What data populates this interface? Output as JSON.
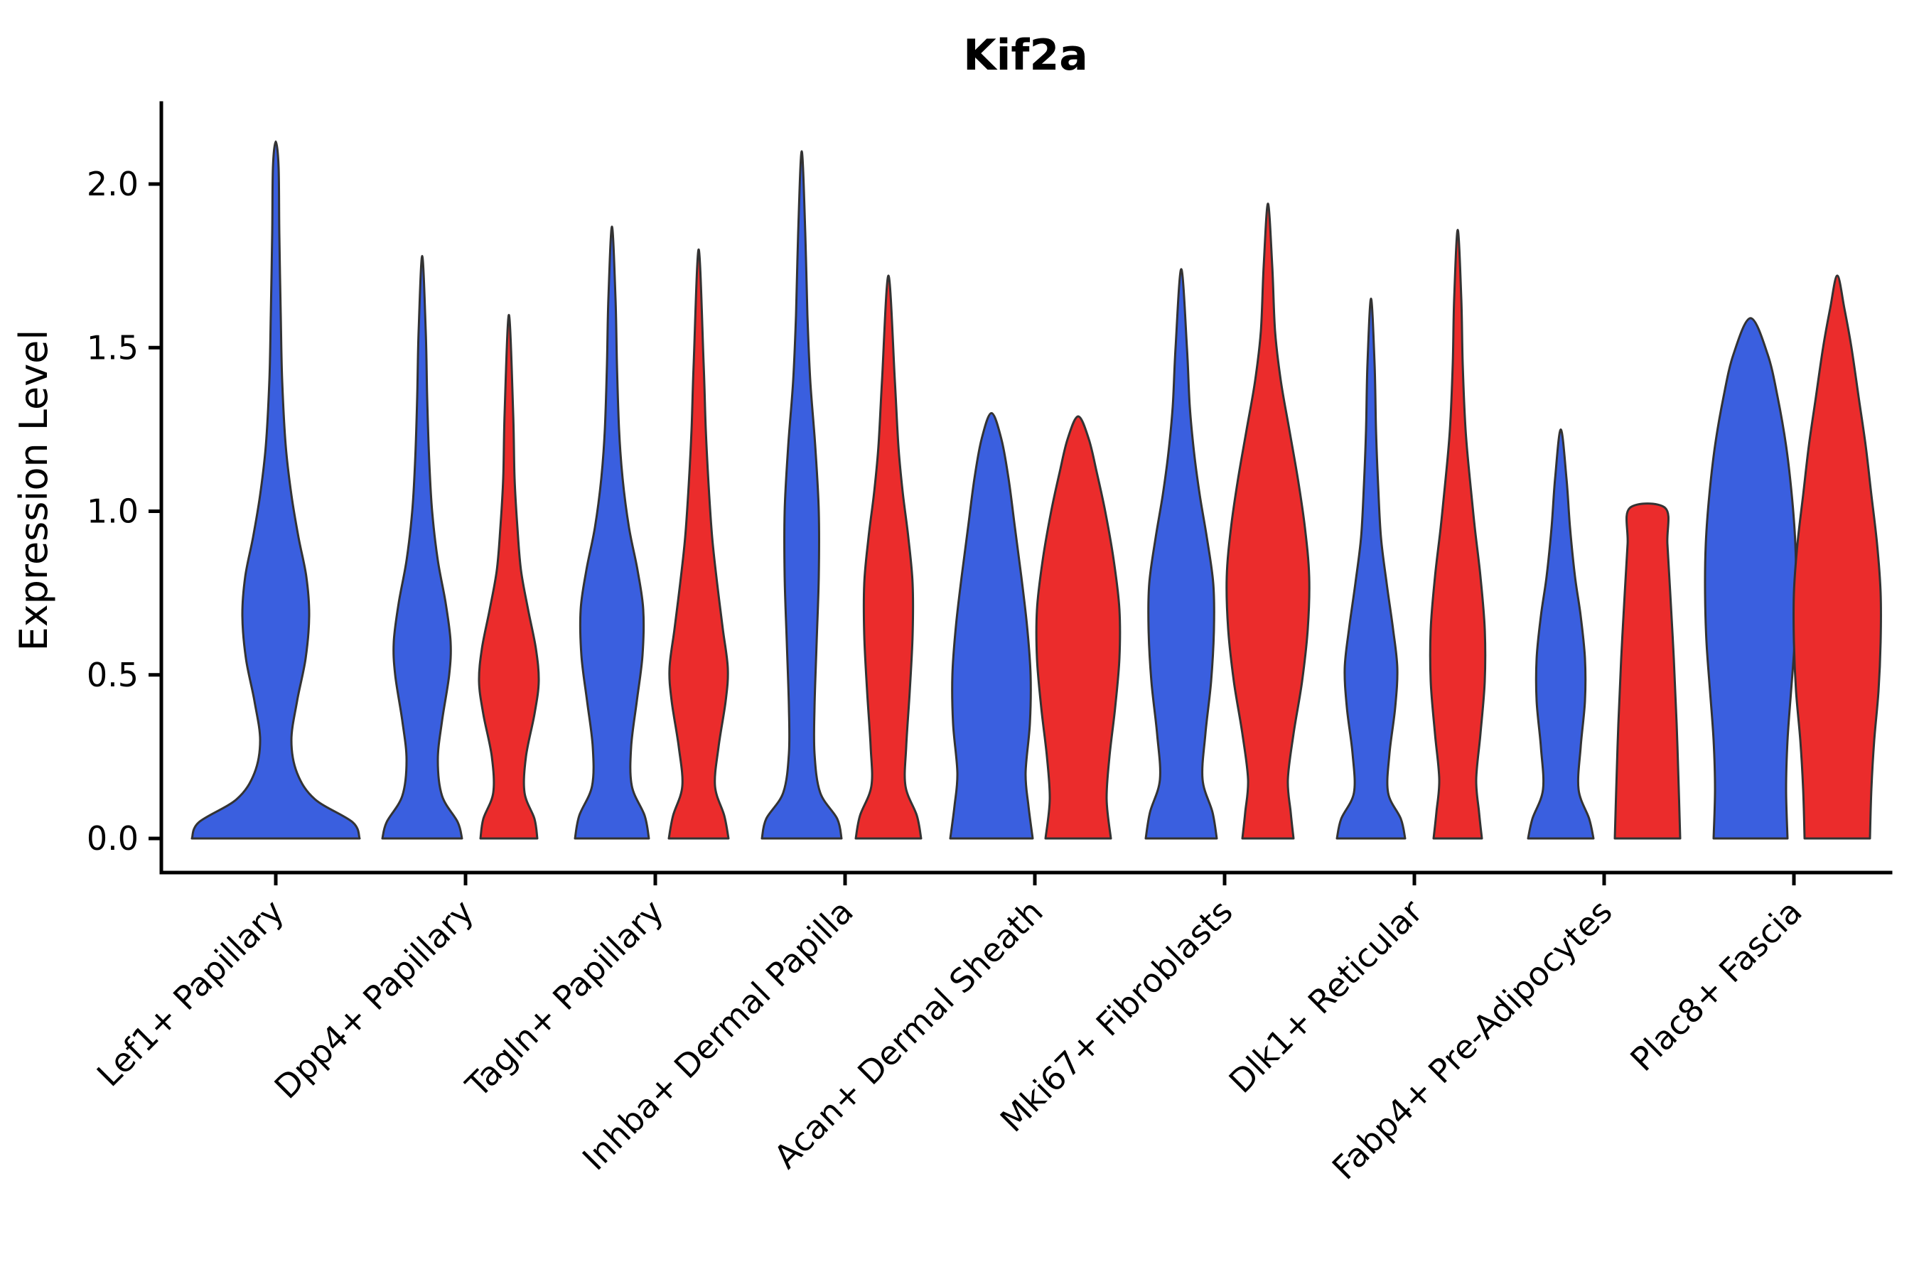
{
  "title": "Kif2a",
  "ylabel": "Expression Level",
  "chart_data": {
    "type": "violin",
    "title": "Kif2a",
    "xlabel": "",
    "ylabel": "Expression Level",
    "ylim": [
      -0.1,
      2.25
    ],
    "grid": false,
    "legend": "none",
    "x_tick_rotation": 45,
    "yticks": [
      {
        "value": 0.0,
        "label": "0.0"
      },
      {
        "value": 0.5,
        "label": "0.5"
      },
      {
        "value": 1.0,
        "label": "1.0"
      },
      {
        "value": 1.5,
        "label": "1.5"
      },
      {
        "value": 2.0,
        "label": "2.0"
      }
    ],
    "categories": [
      "Lef1+ Papillary",
      "Dpp4+ Papillary",
      "Tagln+ Papillary",
      "Inhba+ Dermal Papilla",
      "Acan+ Dermal Sheath",
      "Mki67+ Fibroblasts",
      "Dlk1+ Reticular",
      "Fabp4+ Pre-Adipocytes",
      "Plac8+ Fascia"
    ],
    "groups": [
      {
        "id": "group-blue",
        "color": "#3A5FDF"
      },
      {
        "id": "group-red",
        "color": "#EB2C2C"
      }
    ],
    "edge_color": "#333333",
    "violins": [
      {
        "category_index": 0,
        "group": 0,
        "centered": true,
        "max": 2.13,
        "profile": [
          [
            0,
            118
          ],
          [
            0.05,
            108
          ],
          [
            0.12,
            55
          ],
          [
            0.2,
            30
          ],
          [
            0.3,
            22
          ],
          [
            0.42,
            30
          ],
          [
            0.55,
            42
          ],
          [
            0.68,
            47
          ],
          [
            0.8,
            43
          ],
          [
            0.92,
            32
          ],
          [
            1.05,
            22
          ],
          [
            1.2,
            14
          ],
          [
            1.4,
            9
          ],
          [
            1.6,
            7
          ],
          [
            1.85,
            5
          ],
          [
            2.05,
            4
          ],
          [
            2.13,
            0
          ]
        ]
      },
      {
        "category_index": 1,
        "group": 0,
        "centered": false,
        "max": 1.78,
        "profile": [
          [
            0,
            56
          ],
          [
            0.05,
            50
          ],
          [
            0.13,
            28
          ],
          [
            0.24,
            22
          ],
          [
            0.36,
            28
          ],
          [
            0.5,
            38
          ],
          [
            0.6,
            40
          ],
          [
            0.72,
            33
          ],
          [
            0.85,
            22
          ],
          [
            1,
            14
          ],
          [
            1.15,
            10
          ],
          [
            1.35,
            7
          ],
          [
            1.55,
            5
          ],
          [
            1.78,
            0
          ]
        ]
      },
      {
        "category_index": 1,
        "group": 1,
        "centered": false,
        "max": 1.6,
        "profile": [
          [
            0,
            40
          ],
          [
            0.06,
            36
          ],
          [
            0.14,
            22
          ],
          [
            0.25,
            24
          ],
          [
            0.38,
            36
          ],
          [
            0.48,
            42
          ],
          [
            0.58,
            38
          ],
          [
            0.7,
            27
          ],
          [
            0.82,
            17
          ],
          [
            0.95,
            12
          ],
          [
            1.1,
            8
          ],
          [
            1.3,
            6
          ],
          [
            1.6,
            0
          ]
        ]
      },
      {
        "category_index": 2,
        "group": 0,
        "centered": false,
        "max": 1.87,
        "profile": [
          [
            0,
            52
          ],
          [
            0.07,
            46
          ],
          [
            0.16,
            28
          ],
          [
            0.28,
            27
          ],
          [
            0.42,
            35
          ],
          [
            0.56,
            43
          ],
          [
            0.7,
            44
          ],
          [
            0.82,
            36
          ],
          [
            0.95,
            24
          ],
          [
            1.1,
            15
          ],
          [
            1.25,
            10
          ],
          [
            1.45,
            7
          ],
          [
            1.65,
            5
          ],
          [
            1.87,
            0
          ]
        ]
      },
      {
        "category_index": 2,
        "group": 1,
        "centered": false,
        "max": 1.8,
        "profile": [
          [
            0,
            42
          ],
          [
            0.07,
            36
          ],
          [
            0.16,
            23
          ],
          [
            0.28,
            28
          ],
          [
            0.42,
            38
          ],
          [
            0.52,
            41
          ],
          [
            0.64,
            34
          ],
          [
            0.78,
            26
          ],
          [
            0.92,
            19
          ],
          [
            1.08,
            14
          ],
          [
            1.25,
            10
          ],
          [
            1.45,
            7
          ],
          [
            1.8,
            0
          ]
        ]
      },
      {
        "category_index": 3,
        "group": 0,
        "centered": false,
        "max": 2.1,
        "profile": [
          [
            0,
            56
          ],
          [
            0.06,
            50
          ],
          [
            0.14,
            26
          ],
          [
            0.26,
            18
          ],
          [
            0.4,
            18
          ],
          [
            0.6,
            21
          ],
          [
            0.8,
            24
          ],
          [
            1,
            24
          ],
          [
            1.2,
            19
          ],
          [
            1.4,
            12
          ],
          [
            1.6,
            8
          ],
          [
            1.85,
            5
          ],
          [
            2.1,
            0
          ]
        ]
      },
      {
        "category_index": 3,
        "group": 1,
        "centered": false,
        "max": 1.72,
        "profile": [
          [
            0,
            46
          ],
          [
            0.07,
            40
          ],
          [
            0.16,
            24
          ],
          [
            0.28,
            25
          ],
          [
            0.45,
            30
          ],
          [
            0.62,
            34
          ],
          [
            0.78,
            34
          ],
          [
            0.92,
            28
          ],
          [
            1.06,
            20
          ],
          [
            1.2,
            14
          ],
          [
            1.4,
            9
          ],
          [
            1.72,
            0
          ]
        ]
      },
      {
        "category_index": 4,
        "group": 0,
        "centered": false,
        "max": 1.3,
        "profile": [
          [
            0,
            58
          ],
          [
            0.1,
            52
          ],
          [
            0.2,
            48
          ],
          [
            0.35,
            54
          ],
          [
            0.5,
            55
          ],
          [
            0.65,
            50
          ],
          [
            0.8,
            42
          ],
          [
            0.95,
            33
          ],
          [
            1.1,
            24
          ],
          [
            1.22,
            14
          ],
          [
            1.3,
            0
          ]
        ]
      },
      {
        "category_index": 4,
        "group": 1,
        "centered": false,
        "max": 1.29,
        "profile": [
          [
            0,
            46
          ],
          [
            0.12,
            40
          ],
          [
            0.25,
            44
          ],
          [
            0.4,
            52
          ],
          [
            0.55,
            58
          ],
          [
            0.7,
            58
          ],
          [
            0.85,
            50
          ],
          [
            1,
            38
          ],
          [
            1.12,
            26
          ],
          [
            1.22,
            15
          ],
          [
            1.29,
            0
          ]
        ]
      },
      {
        "category_index": 5,
        "group": 0,
        "centered": false,
        "max": 1.74,
        "profile": [
          [
            0,
            50
          ],
          [
            0.08,
            44
          ],
          [
            0.18,
            30
          ],
          [
            0.32,
            34
          ],
          [
            0.48,
            42
          ],
          [
            0.64,
            46
          ],
          [
            0.78,
            45
          ],
          [
            0.92,
            36
          ],
          [
            1.05,
            26
          ],
          [
            1.18,
            18
          ],
          [
            1.32,
            12
          ],
          [
            1.5,
            8
          ],
          [
            1.74,
            0
          ]
        ]
      },
      {
        "category_index": 5,
        "group": 1,
        "centered": false,
        "max": 1.94,
        "profile": [
          [
            0,
            36
          ],
          [
            0.08,
            32
          ],
          [
            0.18,
            28
          ],
          [
            0.32,
            36
          ],
          [
            0.48,
            48
          ],
          [
            0.64,
            56
          ],
          [
            0.8,
            58
          ],
          [
            0.95,
            52
          ],
          [
            1.1,
            42
          ],
          [
            1.25,
            30
          ],
          [
            1.4,
            18
          ],
          [
            1.55,
            10
          ],
          [
            1.75,
            6
          ],
          [
            1.94,
            0
          ]
        ]
      },
      {
        "category_index": 6,
        "group": 0,
        "centered": false,
        "max": 1.65,
        "profile": [
          [
            0,
            48
          ],
          [
            0.06,
            42
          ],
          [
            0.14,
            24
          ],
          [
            0.26,
            26
          ],
          [
            0.4,
            34
          ],
          [
            0.52,
            37
          ],
          [
            0.64,
            31
          ],
          [
            0.78,
            22
          ],
          [
            0.92,
            14
          ],
          [
            1.08,
            10
          ],
          [
            1.25,
            7
          ],
          [
            1.45,
            5
          ],
          [
            1.65,
            0
          ]
        ]
      },
      {
        "category_index": 6,
        "group": 1,
        "centered": false,
        "max": 1.86,
        "profile": [
          [
            0,
            34
          ],
          [
            0.08,
            30
          ],
          [
            0.18,
            26
          ],
          [
            0.32,
            32
          ],
          [
            0.48,
            38
          ],
          [
            0.64,
            38
          ],
          [
            0.8,
            32
          ],
          [
            0.95,
            24
          ],
          [
            1.1,
            17
          ],
          [
            1.25,
            11
          ],
          [
            1.45,
            7
          ],
          [
            1.65,
            5
          ],
          [
            1.86,
            0
          ]
        ]
      },
      {
        "category_index": 7,
        "group": 0,
        "centered": false,
        "max": 1.25,
        "profile": [
          [
            0,
            46
          ],
          [
            0.06,
            40
          ],
          [
            0.15,
            25
          ],
          [
            0.28,
            28
          ],
          [
            0.42,
            34
          ],
          [
            0.55,
            34
          ],
          [
            0.68,
            28
          ],
          [
            0.8,
            20
          ],
          [
            0.95,
            13
          ],
          [
            1.1,
            8
          ],
          [
            1.25,
            0
          ]
        ]
      },
      {
        "category_index": 7,
        "group": 1,
        "centered": false,
        "max": 1.01,
        "profile": [
          [
            0,
            46
          ],
          [
            0.15,
            44
          ],
          [
            0.35,
            41
          ],
          [
            0.55,
            37
          ],
          [
            0.75,
            32
          ],
          [
            0.9,
            28
          ],
          [
            1.01,
            25
          ]
        ]
      },
      {
        "category_index": 8,
        "group": 0,
        "centered": false,
        "max": 1.59,
        "profile": [
          [
            0,
            52
          ],
          [
            0.15,
            50
          ],
          [
            0.3,
            52
          ],
          [
            0.45,
            57
          ],
          [
            0.6,
            62
          ],
          [
            0.75,
            64
          ],
          [
            0.9,
            63
          ],
          [
            1.05,
            58
          ],
          [
            1.2,
            50
          ],
          [
            1.35,
            38
          ],
          [
            1.48,
            24
          ],
          [
            1.59,
            0
          ]
        ]
      },
      {
        "category_index": 8,
        "group": 1,
        "centered": false,
        "max": 1.72,
        "profile": [
          [
            0,
            46
          ],
          [
            0.15,
            48
          ],
          [
            0.3,
            52
          ],
          [
            0.45,
            58
          ],
          [
            0.6,
            61
          ],
          [
            0.75,
            61
          ],
          [
            0.9,
            56
          ],
          [
            1.05,
            48
          ],
          [
            1.2,
            40
          ],
          [
            1.35,
            30
          ],
          [
            1.5,
            20
          ],
          [
            1.62,
            10
          ],
          [
            1.72,
            0
          ]
        ]
      }
    ]
  }
}
